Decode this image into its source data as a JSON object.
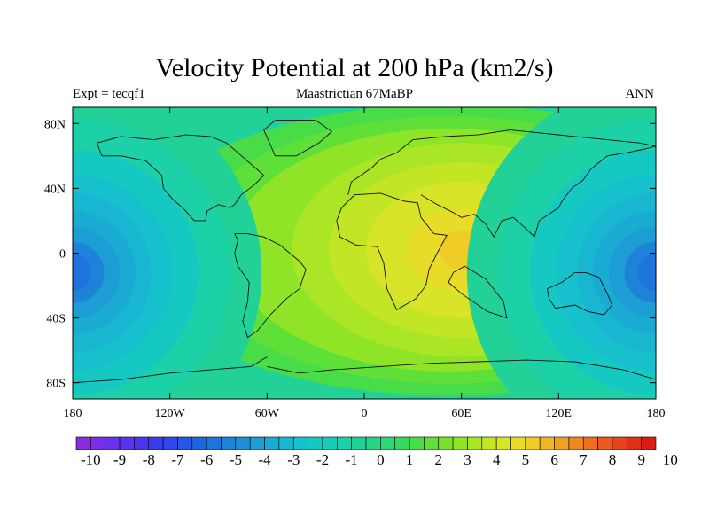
{
  "title": "Velocity Potential at 200 hPa (km2/s)",
  "left_string": "Expt = tecqf1",
  "center_string": "Maastrictian 67MaBP",
  "right_string": "ANN",
  "map": {
    "projection": "cylindrical-equidistant",
    "lon_range": [
      -180,
      180
    ],
    "lat_range": [
      -90,
      90
    ],
    "lon_tick_labels": [
      {
        "value": -180,
        "label": "180"
      },
      {
        "value": -120,
        "label": "120W"
      },
      {
        "value": -60,
        "label": "60W"
      },
      {
        "value": 0,
        "label": "0"
      },
      {
        "value": 60,
        "label": "60E"
      },
      {
        "value": 120,
        "label": "120E"
      },
      {
        "value": 180,
        "label": "180"
      }
    ],
    "lat_tick_labels": [
      {
        "value": 80,
        "label": "80N"
      },
      {
        "value": 40,
        "label": "40N"
      },
      {
        "value": 0,
        "label": "0"
      },
      {
        "value": -40,
        "label": "40S"
      },
      {
        "value": -80,
        "label": "80S"
      }
    ],
    "field_centers": [
      {
        "name": "maximum",
        "lon": 60,
        "lat": -2,
        "value": 5.2
      },
      {
        "name": "minimum",
        "lon": -180,
        "lat": -12,
        "value": -5.8
      }
    ]
  },
  "colorbar": {
    "labels": [
      "-10",
      "-9",
      "-8",
      "-7",
      "-6",
      "-5",
      "-4",
      "-3",
      "-2",
      "-1",
      "0",
      "1",
      "2",
      "3",
      "4",
      "5",
      "6",
      "7",
      "8",
      "9",
      "10"
    ],
    "levels": [
      -10,
      -9.5,
      -9,
      -8.5,
      -8,
      -7.5,
      -7,
      -6.5,
      -6,
      -5.5,
      -5,
      -4.5,
      -4,
      -3.5,
      -3,
      -2.5,
      -2,
      -1.5,
      -1,
      -0.5,
      0,
      0.5,
      1,
      1.5,
      2,
      2.5,
      3,
      3.5,
      4,
      4.5,
      5,
      5.5,
      6,
      6.5,
      7,
      7.5,
      8,
      8.5,
      9,
      9.5,
      10
    ],
    "colors": [
      "#8a2be2",
      "#7b2ee6",
      "#6a30ea",
      "#5a33ee",
      "#4a36f0",
      "#3a3cf0",
      "#2e48ee",
      "#2456e8",
      "#1e66e0",
      "#1e74dc",
      "#1e82d8",
      "#1e90d6",
      "#1c9ed4",
      "#1aabd2",
      "#18b6d0",
      "#16c0cc",
      "#16c8c2",
      "#18cdb6",
      "#1cd0a8",
      "#22d198",
      "#28d486",
      "#2ed674",
      "#38d860",
      "#48dc48",
      "#5ee038",
      "#76e22e",
      "#90e428",
      "#aae626",
      "#c2e626",
      "#d8e428",
      "#e8dc28",
      "#f0cc26",
      "#f2b824",
      "#f2a022",
      "#f08820",
      "#ee701e",
      "#ea5a1c",
      "#e6441a",
      "#e23018",
      "#dc1c16"
    ]
  }
}
